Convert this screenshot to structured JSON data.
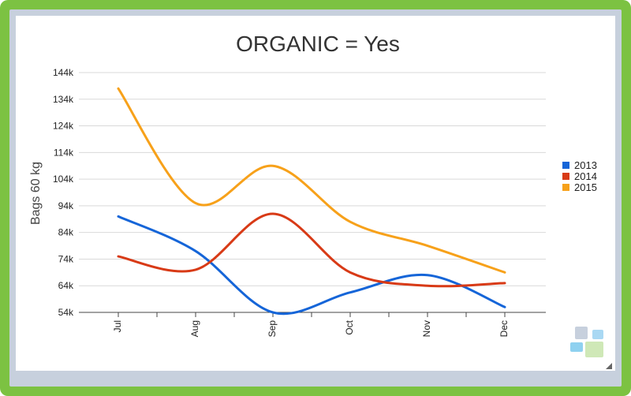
{
  "chart_data": {
    "type": "line",
    "title": "ORGANIC = Yes",
    "xlabel": "",
    "ylabel": "Bags 60 kg",
    "categories": [
      "Jul",
      "Aug",
      "Sep",
      "Oct",
      "Nov",
      "Dec"
    ],
    "y_ticks": [
      "54k",
      "64k",
      "74k",
      "84k",
      "94k",
      "104k",
      "114k",
      "124k",
      "134k",
      "144k"
    ],
    "ylim": [
      54000,
      144000
    ],
    "grid": true,
    "legend_position": "right",
    "series": [
      {
        "name": "2013",
        "color": "#1565d8",
        "values": [
          90000,
          77000,
          54000,
          61500,
          68000,
          56000
        ]
      },
      {
        "name": "2014",
        "color": "#d83a16",
        "values": [
          75000,
          70000,
          91000,
          69000,
          64000,
          65000
        ]
      },
      {
        "name": "2015",
        "color": "#f7a11a",
        "values": [
          138000,
          95000,
          109000,
          88000,
          79000,
          69000
        ]
      }
    ]
  },
  "logo": {
    "name": "app-logo-icon"
  },
  "resize": {
    "name": "resize-grip-icon"
  }
}
